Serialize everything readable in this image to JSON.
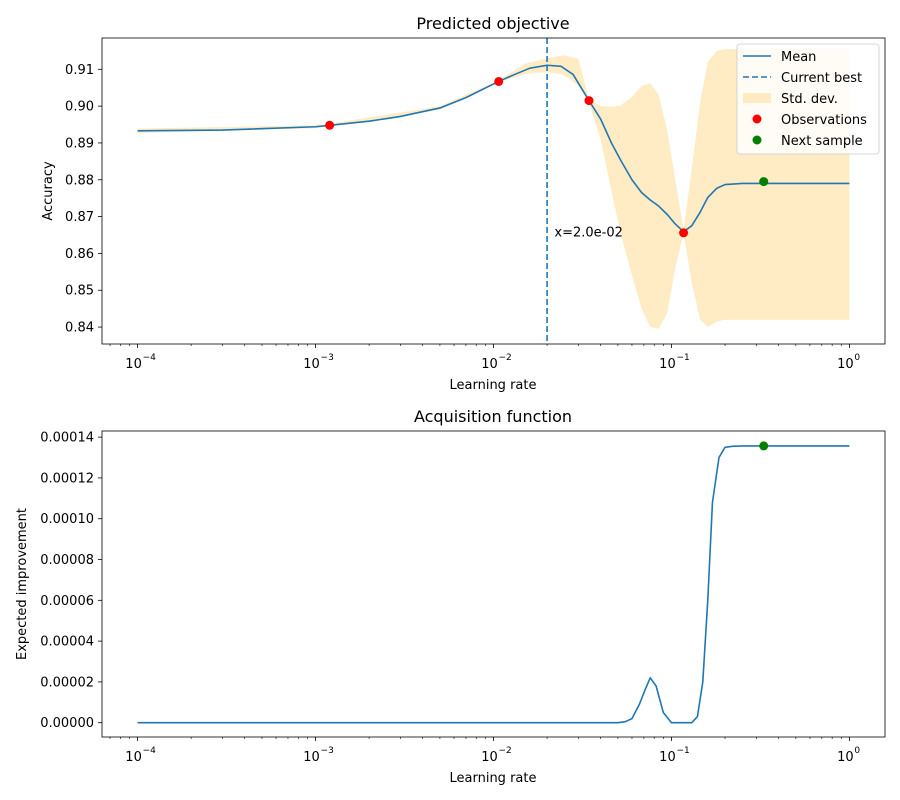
{
  "colors": {
    "mean": "#1f77b4",
    "band": "#ffe4b0",
    "observation": "#ff0000",
    "next_sample": "#007f00"
  },
  "chart_data": [
    {
      "type": "line",
      "title": "Predicted objective",
      "xlabel": "Learning rate",
      "ylabel": "Accuracy",
      "xscale": "log",
      "xlim": [
        6.31e-05,
        1.585
      ],
      "ylim": [
        0.8354,
        0.9185
      ],
      "xticks": [
        0.0001,
        0.001,
        0.01,
        0.1,
        1
      ],
      "xtick_labels": [
        {
          "base": "10",
          "exp": "−4"
        },
        {
          "base": "10",
          "exp": "−3"
        },
        {
          "base": "10",
          "exp": "−2"
        },
        {
          "base": "10",
          "exp": "−1"
        },
        {
          "base": "10",
          "exp": "0"
        }
      ],
      "yticks": [
        0.84,
        0.85,
        0.86,
        0.87,
        0.88,
        0.89,
        0.9,
        0.91
      ],
      "ytick_labels": [
        "0.84",
        "0.85",
        "0.86",
        "0.87",
        "0.88",
        "0.89",
        "0.90",
        "0.91"
      ],
      "series": [
        {
          "name": "Mean",
          "style": "line",
          "x": [
            0.0001,
            0.0003,
            0.001,
            0.0012,
            0.002,
            0.003,
            0.005,
            0.007,
            0.0107,
            0.013,
            0.016,
            0.02,
            0.024,
            0.028,
            0.0344,
            0.04,
            0.046,
            0.052,
            0.06,
            0.068,
            0.076,
            0.085,
            0.095,
            0.105,
            0.117,
            0.13,
            0.145,
            0.16,
            0.18,
            0.2,
            0.25,
            0.33,
            0.5,
            1.0
          ],
          "y": [
            0.8933,
            0.8935,
            0.8944,
            0.8948,
            0.8959,
            0.8972,
            0.8995,
            0.9023,
            0.9067,
            0.9085,
            0.9103,
            0.9111,
            0.9108,
            0.9086,
            0.9015,
            0.8965,
            0.89,
            0.8852,
            0.88,
            0.8765,
            0.8745,
            0.8728,
            0.8705,
            0.868,
            0.8659,
            0.8675,
            0.8712,
            0.8752,
            0.8777,
            0.8787,
            0.879,
            0.879,
            0.879,
            0.879
          ]
        },
        {
          "name": "Current best",
          "style": "vline",
          "x": 0.02
        },
        {
          "name": "Std. dev.",
          "style": "band",
          "x": [
            0.0001,
            0.001,
            0.0012,
            0.005,
            0.0107,
            0.015,
            0.02,
            0.025,
            0.03,
            0.0344,
            0.04,
            0.046,
            0.052,
            0.06,
            0.068,
            0.076,
            0.085,
            0.095,
            0.105,
            0.117,
            0.13,
            0.145,
            0.16,
            0.18,
            0.2,
            0.25,
            0.33,
            0.5,
            1.0
          ],
          "lower": [
            0.8927,
            0.894,
            0.8944,
            0.899,
            0.9064,
            0.9087,
            0.9093,
            0.9085,
            0.9055,
            0.9009,
            0.891,
            0.877,
            0.865,
            0.854,
            0.845,
            0.84,
            0.8395,
            0.844,
            0.856,
            0.8655,
            0.852,
            0.842,
            0.84,
            0.8415,
            0.842,
            0.842,
            0.842,
            0.842,
            0.842
          ],
          "upper": [
            0.8939,
            0.8948,
            0.8952,
            0.9,
            0.907,
            0.9115,
            0.913,
            0.9138,
            0.9128,
            0.902,
            0.9,
            0.8998,
            0.9002,
            0.9025,
            0.9055,
            0.9062,
            0.903,
            0.893,
            0.88,
            0.8663,
            0.883,
            0.901,
            0.912,
            0.915,
            0.9155,
            0.9155,
            0.9155,
            0.9155,
            0.9155
          ]
        },
        {
          "name": "Observations",
          "style": "scatter",
          "x": [
            0.0012,
            0.0107,
            0.0344,
            0.117
          ],
          "y": [
            0.8948,
            0.9067,
            0.9015,
            0.8656
          ]
        },
        {
          "name": "Next sample",
          "style": "scatter",
          "x": [
            0.33
          ],
          "y": [
            0.8795
          ]
        }
      ],
      "annotations": [
        {
          "text": "x=2.0e-02",
          "x": 0.022,
          "y": 0.866
        }
      ],
      "legend": {
        "position": "upper right"
      },
      "grid": false
    },
    {
      "type": "line",
      "title": "Acquisition function",
      "xlabel": "Learning rate",
      "ylabel": "Expected improvement",
      "xscale": "log",
      "xlim": [
        6.31e-05,
        1.585
      ],
      "ylim": [
        -7e-06,
        0.000143
      ],
      "xticks": [
        0.0001,
        0.001,
        0.01,
        0.1,
        1
      ],
      "xtick_labels": [
        {
          "base": "10",
          "exp": "−4"
        },
        {
          "base": "10",
          "exp": "−3"
        },
        {
          "base": "10",
          "exp": "−2"
        },
        {
          "base": "10",
          "exp": "−1"
        },
        {
          "base": "10",
          "exp": "0"
        }
      ],
      "yticks": [
        0,
        2e-05,
        4e-05,
        6e-05,
        8e-05,
        0.0001,
        0.00012,
        0.00014
      ],
      "ytick_labels": [
        "0.00000",
        "0.00002",
        "0.00004",
        "0.00006",
        "0.00008",
        "0.00010",
        "0.00012",
        "0.00014"
      ],
      "series": [
        {
          "style": "line",
          "x": [
            0.0001,
            0.01,
            0.05,
            0.055,
            0.06,
            0.066,
            0.071,
            0.076,
            0.082,
            0.09,
            0.1,
            0.11,
            0.13,
            0.14,
            0.15,
            0.16,
            0.17,
            0.185,
            0.2,
            0.22,
            0.25,
            0.33,
            0.5,
            1.0
          ],
          "y": [
            0,
            0,
            0,
            5e-07,
            2e-06,
            9e-06,
            1.6e-05,
            2.2e-05,
            1.8e-05,
            5e-06,
            0,
            0,
            0,
            3e-06,
            2e-05,
            6e-05,
            0.000108,
            0.00013,
            0.000135,
            0.0001355,
            0.0001357,
            0.0001357,
            0.0001357,
            0.0001357
          ]
        },
        {
          "name": "Next sample",
          "style": "scatter",
          "x": [
            0.33
          ],
          "y": [
            0.0001357
          ]
        }
      ],
      "grid": false
    }
  ]
}
